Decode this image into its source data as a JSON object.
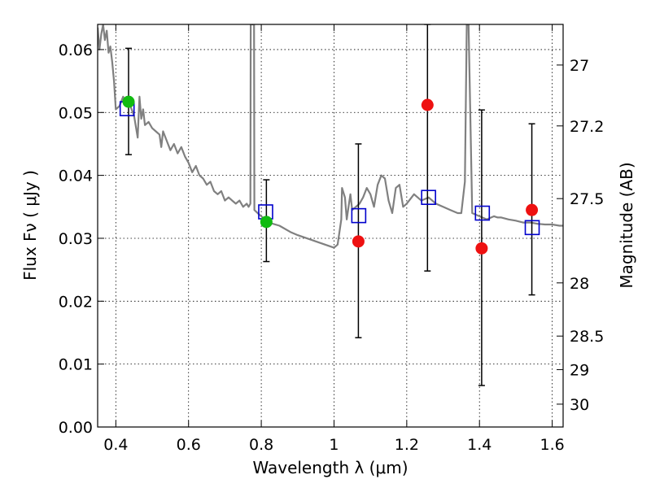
{
  "chart_data": {
    "type": "scatter",
    "xlabel": "Wavelength  λ (μm)",
    "ylabel": "Flux  Fν  ( μJy )",
    "ylabel_right": "Magnitude (AB)",
    "xlim": [
      0.35,
      1.63
    ],
    "ylim": [
      0.0,
      0.064
    ],
    "x_ticks": [
      0.4,
      0.6,
      0.8,
      1.0,
      1.2,
      1.4,
      1.6
    ],
    "x_tick_labels": [
      "0.4",
      "0.6",
      "0.8",
      "1",
      "1.2",
      "1.4",
      "1.6"
    ],
    "y_ticks": [
      0.0,
      0.01,
      0.02,
      0.03,
      0.04,
      0.05,
      0.06
    ],
    "y_tick_labels": [
      "0.00",
      "0.01",
      "0.02",
      "0.03",
      "0.04",
      "0.05",
      "0.06"
    ],
    "right_ticks": [
      {
        "mag": 27,
        "label": "27"
      },
      {
        "mag": 27.2,
        "label": "27.2"
      },
      {
        "mag": 27.5,
        "label": "27.5"
      },
      {
        "mag": 28,
        "label": "28"
      },
      {
        "mag": 28.5,
        "label": "28.5"
      },
      {
        "mag": 29,
        "label": "29"
      },
      {
        "mag": 30,
        "label": "30"
      }
    ],
    "grid": true,
    "series": [
      {
        "name": "model_sed",
        "kind": "line",
        "color": "#808080",
        "x": [
          0.35,
          0.355,
          0.36,
          0.365,
          0.37,
          0.375,
          0.38,
          0.385,
          0.39,
          0.395,
          0.4,
          0.41,
          0.42,
          0.43,
          0.44,
          0.45,
          0.46,
          0.465,
          0.47,
          0.475,
          0.48,
          0.49,
          0.5,
          0.51,
          0.52,
          0.525,
          0.53,
          0.54,
          0.55,
          0.56,
          0.57,
          0.58,
          0.59,
          0.6,
          0.61,
          0.62,
          0.63,
          0.64,
          0.65,
          0.66,
          0.67,
          0.68,
          0.69,
          0.7,
          0.71,
          0.72,
          0.73,
          0.74,
          0.75,
          0.76,
          0.765,
          0.77,
          0.771,
          0.78,
          0.781,
          0.79,
          0.8,
          0.81,
          0.82,
          0.85,
          0.88,
          0.9,
          0.95,
          1.0,
          1.01,
          1.02,
          1.022,
          1.03,
          1.035,
          1.04,
          1.045,
          1.05,
          1.06,
          1.07,
          1.08,
          1.09,
          1.1,
          1.11,
          1.12,
          1.13,
          1.14,
          1.15,
          1.16,
          1.17,
          1.18,
          1.19,
          1.2,
          1.22,
          1.24,
          1.26,
          1.28,
          1.3,
          1.32,
          1.34,
          1.35,
          1.36,
          1.365,
          1.37,
          1.38,
          1.4,
          1.42,
          1.44,
          1.45,
          1.46,
          1.48,
          1.5,
          1.52,
          1.54,
          1.56,
          1.58,
          1.6,
          1.62,
          1.63
        ],
        "y": [
          0.0635,
          0.06,
          0.0625,
          0.064,
          0.0615,
          0.063,
          0.0595,
          0.0605,
          0.058,
          0.055,
          0.0505,
          0.051,
          0.0525,
          0.0515,
          0.051,
          0.0495,
          0.046,
          0.0525,
          0.049,
          0.0505,
          0.048,
          0.0485,
          0.0475,
          0.047,
          0.0465,
          0.0445,
          0.047,
          0.0455,
          0.044,
          0.045,
          0.0435,
          0.0445,
          0.043,
          0.042,
          0.0405,
          0.0415,
          0.04,
          0.0395,
          0.0385,
          0.039,
          0.0375,
          0.037,
          0.0375,
          0.036,
          0.0365,
          0.036,
          0.0355,
          0.036,
          0.035,
          0.0355,
          0.035,
          0.0355,
          0.064,
          0.064,
          0.0345,
          0.034,
          0.0335,
          0.033,
          0.0325,
          0.032,
          0.031,
          0.0305,
          0.0295,
          0.0285,
          0.029,
          0.033,
          0.038,
          0.0365,
          0.033,
          0.035,
          0.037,
          0.0345,
          0.035,
          0.0355,
          0.0365,
          0.038,
          0.037,
          0.035,
          0.0385,
          0.04,
          0.0395,
          0.036,
          0.034,
          0.038,
          0.0385,
          0.035,
          0.0355,
          0.037,
          0.036,
          0.0365,
          0.0355,
          0.035,
          0.0345,
          0.034,
          0.034,
          0.039,
          0.064,
          0.064,
          0.034,
          0.0335,
          0.033,
          0.0335,
          0.0333,
          0.0333,
          0.033,
          0.0328,
          0.0325,
          0.0325,
          0.0323,
          0.0322,
          0.0322,
          0.032,
          0.032
        ]
      },
      {
        "name": "observed_fluxes",
        "kind": "points",
        "color": "#ee1111",
        "x": [
          1.067,
          1.257,
          1.406,
          1.544
        ],
        "y": [
          0.0295,
          0.0512,
          0.0284,
          0.0345
        ],
        "yerr_low": [
          0.0142,
          0.0248,
          0.0066,
          0.021
        ],
        "yerr_high": [
          0.045,
          0.064,
          0.0504,
          0.0482
        ]
      },
      {
        "name": "observed_fluxes_optical",
        "kind": "points",
        "color": "#11bb11",
        "x": [
          0.435,
          0.814
        ],
        "y": [
          0.0517,
          0.0326
        ],
        "yerr_low": [
          0.0433,
          0.0263
        ],
        "yerr_high": [
          0.0602,
          0.0393
        ]
      },
      {
        "name": "model_band_fluxes",
        "kind": "squares",
        "color": "#0000cc",
        "x": [
          0.431,
          0.812,
          1.068,
          1.26,
          1.408,
          1.545
        ],
        "y": [
          0.0506,
          0.0342,
          0.0336,
          0.0365,
          0.034,
          0.0317
        ]
      }
    ]
  }
}
